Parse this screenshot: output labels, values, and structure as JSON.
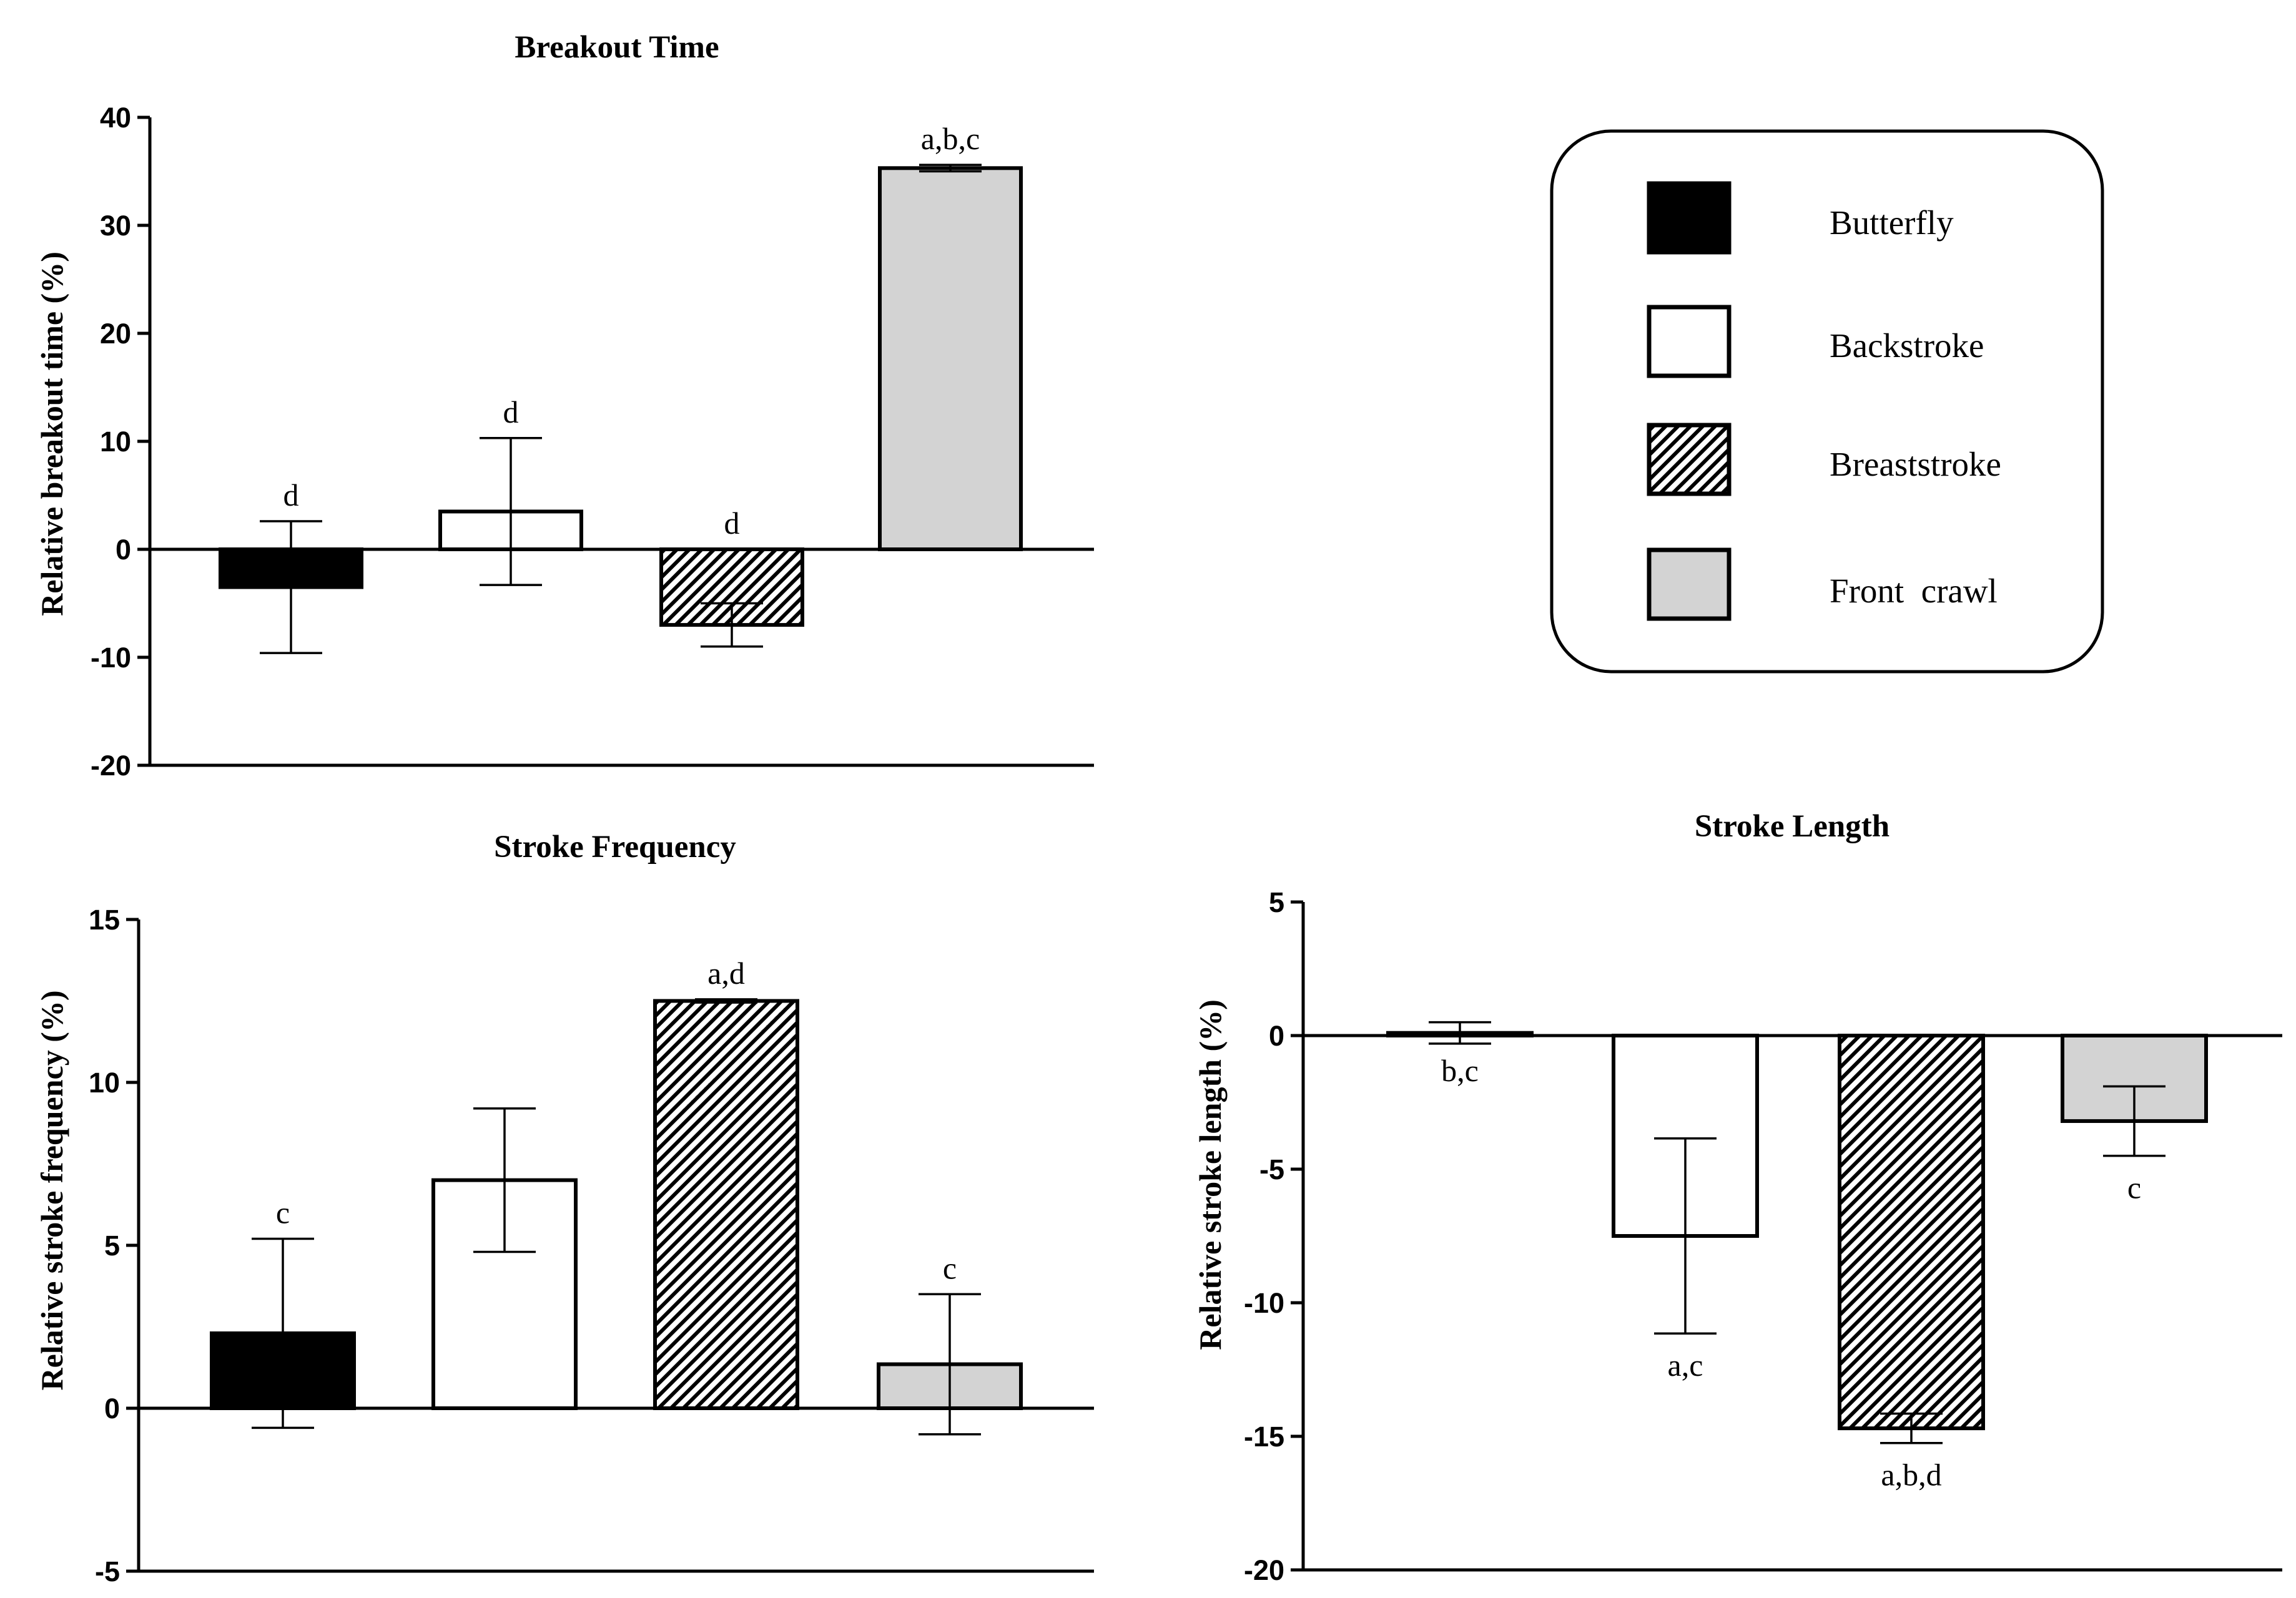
{
  "colors": {
    "butterfly": "#000000",
    "backstroke": "#ffffff",
    "breaststroke": "hatch",
    "front_crawl": "#d3d3d3",
    "stroke": "#000000"
  },
  "legend": {
    "items": [
      {
        "key": "butterfly",
        "label": "Butterfly"
      },
      {
        "key": "backstroke",
        "label": "Backstroke"
      },
      {
        "key": "breaststroke",
        "label": "Breaststroke"
      },
      {
        "key": "front_crawl",
        "label": "Front  crawl"
      }
    ]
  },
  "chart_data": [
    {
      "id": "breakout",
      "type": "bar",
      "title": "Breakout Time",
      "xlabel": "",
      "ylabel": "Relative breakout time (%)",
      "ylim": [
        -20,
        40
      ],
      "yticks": [
        -20,
        -10,
        0,
        10,
        20,
        30,
        40
      ],
      "categories": [
        "Butterfly",
        "Backstroke",
        "Breaststroke",
        "Front crawl"
      ],
      "values": [
        -3.5,
        3.5,
        -7.0,
        35.3
      ],
      "errors": [
        6.1,
        6.8,
        2.0,
        0.3
      ],
      "annotations": [
        "d",
        "d",
        "d",
        "a,b,c"
      ]
    },
    {
      "id": "frequency",
      "type": "bar",
      "title": "Stroke Frequency",
      "xlabel": "",
      "ylabel": "Relative stroke frequency (%)",
      "ylim": [
        -5,
        15
      ],
      "yticks": [
        -5,
        0,
        5,
        10,
        15
      ],
      "categories": [
        "Butterfly",
        "Backstroke",
        "Breaststroke",
        "Front crawl"
      ],
      "values": [
        2.3,
        7.0,
        12.5,
        1.35
      ],
      "errors": [
        2.9,
        2.2,
        0.05,
        2.15
      ],
      "annotations": [
        "c",
        "",
        "a,d",
        "c"
      ]
    },
    {
      "id": "length",
      "type": "bar",
      "title": "Stroke Length",
      "xlabel": "",
      "ylabel": "Relative stroke length (%)",
      "ylim": [
        -20,
        5
      ],
      "yticks": [
        -20,
        -15,
        -10,
        -5,
        0,
        5
      ],
      "categories": [
        "Butterfly",
        "Backstroke",
        "Breaststroke",
        "Front crawl"
      ],
      "values": [
        0.1,
        -7.5,
        -14.7,
        -3.2
      ],
      "errors": [
        0.4,
        3.65,
        0.55,
        1.3
      ],
      "annotations": [
        "b,c",
        "a,c",
        "a,b,d",
        "c"
      ]
    }
  ]
}
